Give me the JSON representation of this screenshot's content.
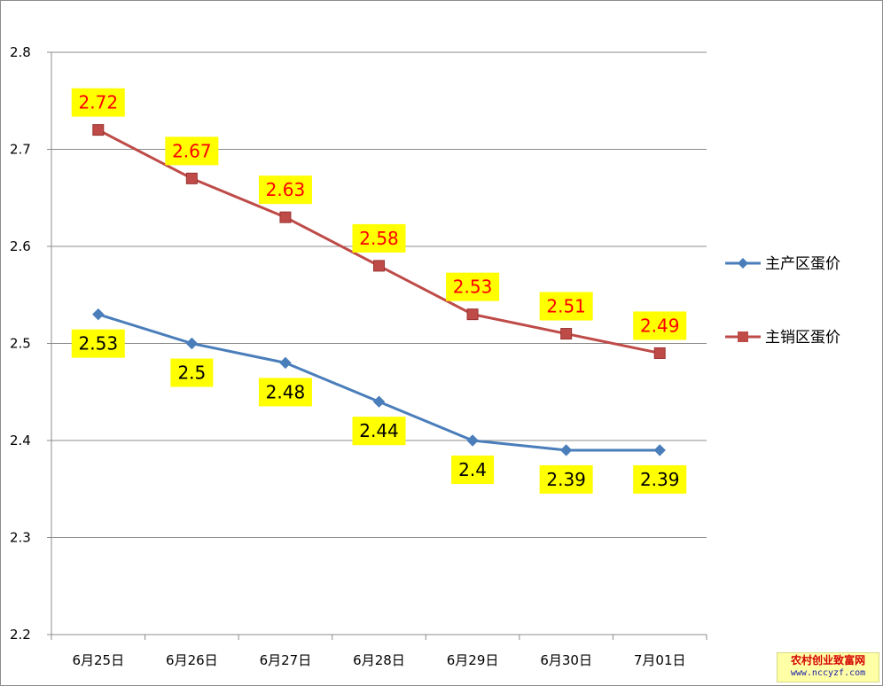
{
  "chart_data": {
    "type": "line",
    "categories": [
      "6月25日",
      "6月26日",
      "6月27日",
      "6月28日",
      "6月29日",
      "6月30日",
      "7月01日"
    ],
    "series": [
      {
        "name": "主产区蛋价",
        "values": [
          2.53,
          2.5,
          2.48,
          2.44,
          2.4,
          2.39,
          2.39
        ],
        "color": "#4a7ebb",
        "marker": "diamond",
        "label_position": "below",
        "label_color": "#000000"
      },
      {
        "name": "主销区蛋价",
        "values": [
          2.72,
          2.67,
          2.63,
          2.58,
          2.53,
          2.51,
          2.49
        ],
        "color": "#be4b48",
        "marker": "square",
        "label_position": "above",
        "label_color": "#ff0000"
      }
    ],
    "ylim": [
      2.2,
      2.8
    ],
    "yticks": [
      "2.2",
      "2.3",
      "2.4",
      "2.5",
      "2.6",
      "2.7",
      "2.8"
    ],
    "grid": true,
    "legend_position": "right",
    "data_label_background": "#ffff00"
  },
  "watermark": {
    "line1": "农村创业致富网",
    "line2": "www.nccyzf.com"
  }
}
